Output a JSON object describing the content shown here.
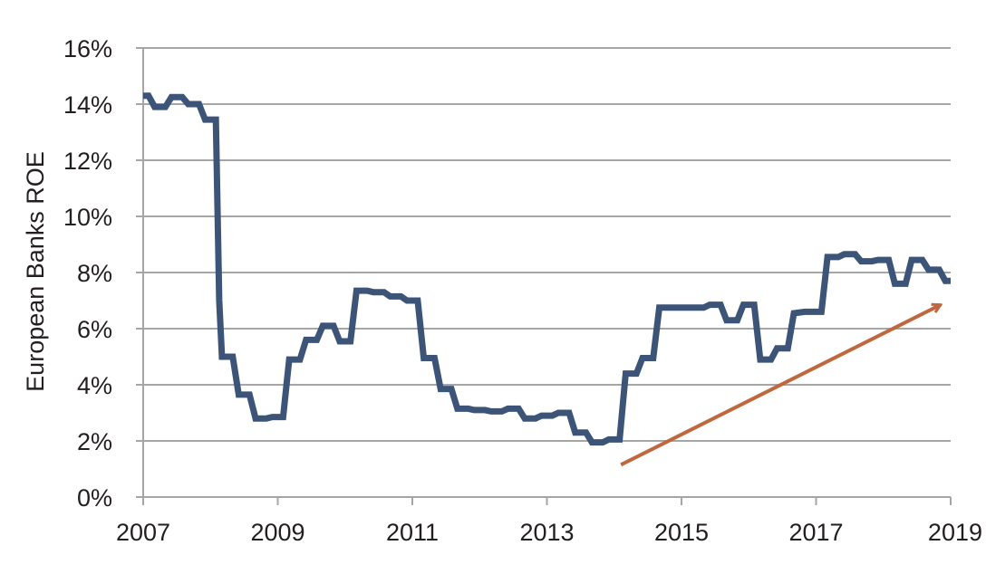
{
  "chart_data": {
    "type": "line",
    "title": "",
    "xlabel": "",
    "ylabel": "European Banks ROE",
    "xlim": [
      2007,
      2019
    ],
    "ylim": [
      0,
      16
    ],
    "x_ticks": [
      "2007",
      "2009",
      "2011",
      "2013",
      "2015",
      "2017",
      "2019"
    ],
    "y_ticks": [
      "0%",
      "2%",
      "4%",
      "6%",
      "8%",
      "10%",
      "12%",
      "14%",
      "16%"
    ],
    "grid": "horizontal",
    "colors": {
      "series": "#3d5479",
      "arrow": "#c0673f",
      "grid": "#a6a6a6",
      "axis": "#a6a6a6"
    },
    "series": [
      {
        "name": "",
        "points": [
          [
            2007.0,
            14.3
          ],
          [
            2007.08,
            14.3
          ],
          [
            2007.17,
            13.9
          ],
          [
            2007.33,
            13.9
          ],
          [
            2007.42,
            14.25
          ],
          [
            2007.58,
            14.25
          ],
          [
            2007.67,
            14.0
          ],
          [
            2007.83,
            14.0
          ],
          [
            2007.92,
            13.45
          ],
          [
            2008.08,
            13.45
          ],
          [
            2008.13,
            7.0
          ],
          [
            2008.17,
            5.0
          ],
          [
            2008.33,
            5.0
          ],
          [
            2008.42,
            3.65
          ],
          [
            2008.58,
            3.65
          ],
          [
            2008.67,
            2.8
          ],
          [
            2008.83,
            2.8
          ],
          [
            2008.92,
            2.85
          ],
          [
            2009.08,
            2.85
          ],
          [
            2009.17,
            4.9
          ],
          [
            2009.33,
            4.9
          ],
          [
            2009.42,
            5.6
          ],
          [
            2009.58,
            5.6
          ],
          [
            2009.67,
            6.1
          ],
          [
            2009.83,
            6.1
          ],
          [
            2009.92,
            5.55
          ],
          [
            2010.08,
            5.55
          ],
          [
            2010.17,
            7.35
          ],
          [
            2010.33,
            7.35
          ],
          [
            2010.42,
            7.3
          ],
          [
            2010.58,
            7.3
          ],
          [
            2010.67,
            7.15
          ],
          [
            2010.83,
            7.15
          ],
          [
            2010.92,
            7.0
          ],
          [
            2011.08,
            7.0
          ],
          [
            2011.17,
            4.95
          ],
          [
            2011.33,
            4.95
          ],
          [
            2011.42,
            3.85
          ],
          [
            2011.58,
            3.85
          ],
          [
            2011.67,
            3.15
          ],
          [
            2011.83,
            3.15
          ],
          [
            2011.92,
            3.1
          ],
          [
            2012.08,
            3.1
          ],
          [
            2012.17,
            3.05
          ],
          [
            2012.33,
            3.05
          ],
          [
            2012.42,
            3.15
          ],
          [
            2012.58,
            3.15
          ],
          [
            2012.67,
            2.8
          ],
          [
            2012.83,
            2.8
          ],
          [
            2012.92,
            2.9
          ],
          [
            2013.08,
            2.9
          ],
          [
            2013.17,
            3.0
          ],
          [
            2013.33,
            3.0
          ],
          [
            2013.42,
            2.3
          ],
          [
            2013.58,
            2.3
          ],
          [
            2013.67,
            1.95
          ],
          [
            2013.83,
            1.95
          ],
          [
            2013.92,
            2.05
          ],
          [
            2014.08,
            2.05
          ],
          [
            2014.17,
            4.4
          ],
          [
            2014.33,
            4.4
          ],
          [
            2014.42,
            4.95
          ],
          [
            2014.58,
            4.95
          ],
          [
            2014.67,
            6.75
          ],
          [
            2014.83,
            6.75
          ],
          [
            2014.92,
            6.75
          ],
          [
            2015.08,
            6.75
          ],
          [
            2015.17,
            6.75
          ],
          [
            2015.33,
            6.75
          ],
          [
            2015.42,
            6.85
          ],
          [
            2015.58,
            6.85
          ],
          [
            2015.67,
            6.3
          ],
          [
            2015.83,
            6.3
          ],
          [
            2015.92,
            6.85
          ],
          [
            2016.08,
            6.85
          ],
          [
            2016.17,
            4.9
          ],
          [
            2016.33,
            4.9
          ],
          [
            2016.42,
            5.3
          ],
          [
            2016.58,
            5.3
          ],
          [
            2016.67,
            6.55
          ],
          [
            2016.83,
            6.6
          ],
          [
            2016.92,
            6.6
          ],
          [
            2017.08,
            6.6
          ],
          [
            2017.17,
            8.55
          ],
          [
            2017.33,
            8.55
          ],
          [
            2017.42,
            8.65
          ],
          [
            2017.58,
            8.65
          ],
          [
            2017.67,
            8.4
          ],
          [
            2017.83,
            8.4
          ],
          [
            2017.92,
            8.45
          ],
          [
            2018.08,
            8.45
          ],
          [
            2018.17,
            7.6
          ],
          [
            2018.33,
            7.6
          ],
          [
            2018.42,
            8.45
          ],
          [
            2018.58,
            8.45
          ],
          [
            2018.67,
            8.1
          ],
          [
            2018.83,
            8.1
          ],
          [
            2018.92,
            7.7
          ],
          [
            2019.0,
            7.7
          ]
        ]
      }
    ],
    "annotations": [
      {
        "type": "arrow",
        "from": [
          2014.1,
          1.15
        ],
        "to": [
          2018.85,
          6.85
        ]
      }
    ]
  }
}
